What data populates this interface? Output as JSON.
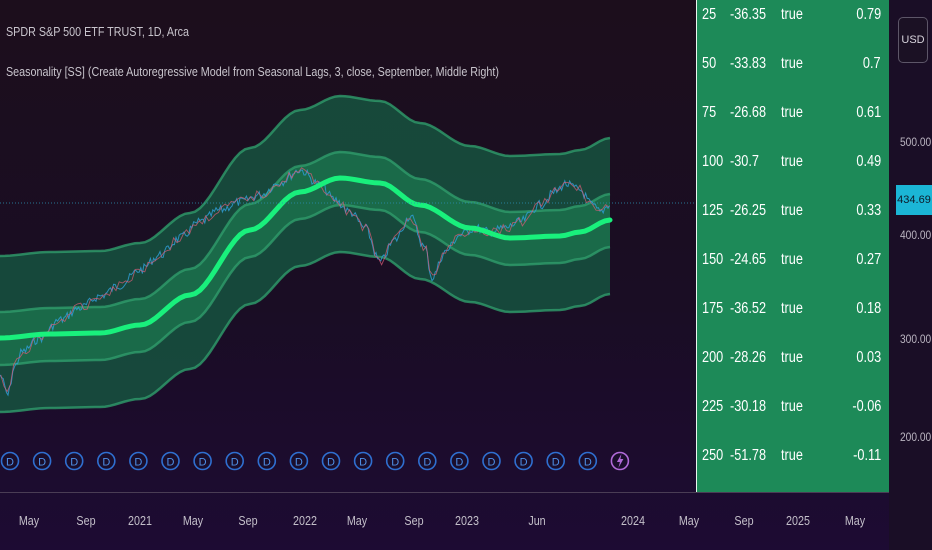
{
  "header": {
    "symbol_line": "SPDR S&P 500 ETF TRUST, 1D, Arca",
    "indicator_line": "Seasonality [SS] (Create Autoregressive Model from Seasonal Lags, 3, close, September, Middle Right)"
  },
  "table": {
    "rows": [
      [
        "25",
        "-36.35",
        "true",
        "0.79"
      ],
      [
        "50",
        "-33.83",
        "true",
        "0.7"
      ],
      [
        "75",
        "-26.68",
        "true",
        "0.61"
      ],
      [
        "100",
        "-30.7",
        "true",
        "0.49"
      ],
      [
        "125",
        "-26.25",
        "true",
        "0.33"
      ],
      [
        "150",
        "-24.65",
        "true",
        "0.27"
      ],
      [
        "175",
        "-36.52",
        "true",
        "0.18"
      ],
      [
        "200",
        "-28.26",
        "true",
        "0.03"
      ],
      [
        "225",
        "-30.18",
        "true",
        "-0.06"
      ],
      [
        "250",
        "-51.78",
        "true",
        "-0.11"
      ]
    ]
  },
  "price_axis": {
    "currency": "USD",
    "current_price": "434.69",
    "ticks": [
      "500.00",
      "400.00",
      "300.00",
      "200.00"
    ]
  },
  "time_axis": {
    "labels": [
      "May",
      "Sep",
      "2021",
      "May",
      "Sep",
      "2022",
      "May",
      "Sep",
      "2023",
      "Jun",
      "2024",
      "May",
      "Sep",
      "2025",
      "May"
    ]
  },
  "dividend_marker": {
    "label": "D",
    "count": 19
  },
  "event_marker": {
    "icon": "lightning-icon"
  },
  "colors": {
    "band_outer": "#16543f",
    "band_inner": "#1b6e4b",
    "band_edge": "#2f9c6b",
    "model_line": "#19f07c",
    "price_up": "#2f9ed6",
    "price_down": "#d85c78",
    "panel_bg": "#1d8a58",
    "current_price_bg": "#1bb6d6",
    "dividend_marker": "#2f6fd0",
    "event_marker": "#b06ad8"
  }
}
